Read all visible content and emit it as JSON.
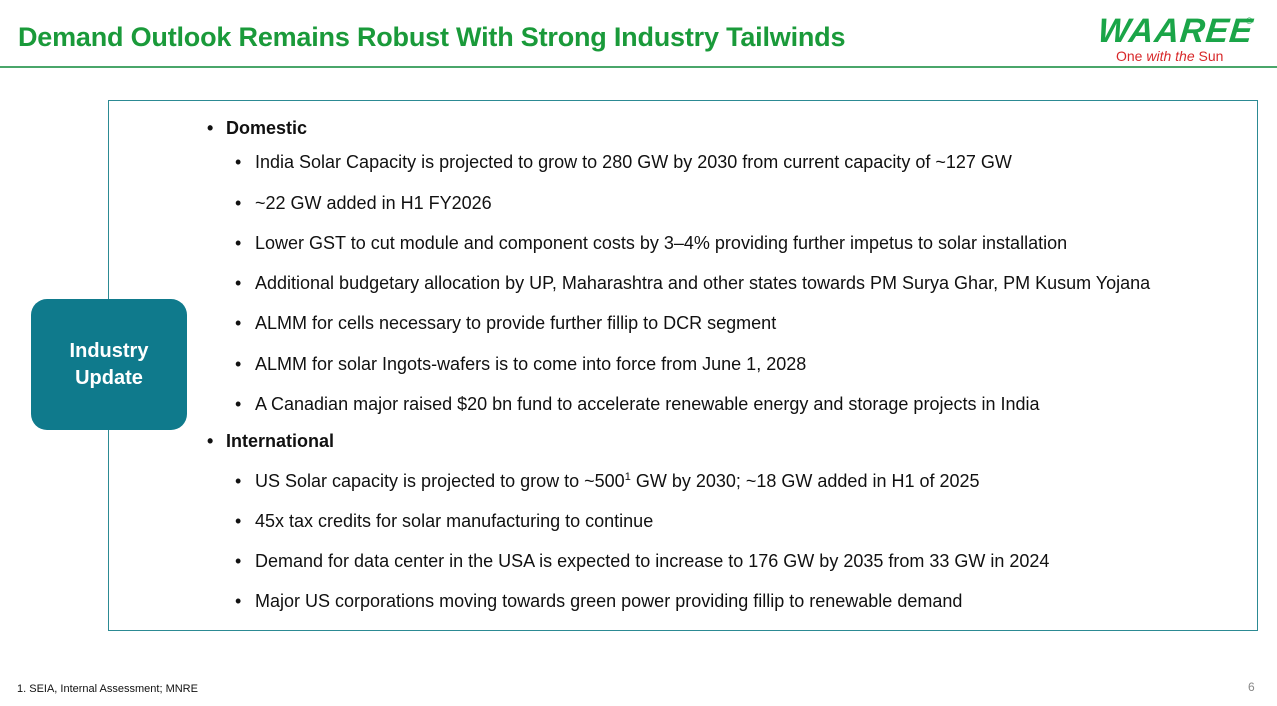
{
  "slide": {
    "title": "Demand Outlook Remains Robust With Strong Industry Tailwinds",
    "page_number": "6",
    "footnote": "1. SEIA, Internal Assessment; MNRE"
  },
  "logo": {
    "wordmark": "WAAREE",
    "registered": "®",
    "tagline_1": "One ",
    "tagline_2": "with the",
    "tagline_3": " Sun",
    "brand_color": "#1aa548",
    "tagline_color": "#d8282a"
  },
  "badge": {
    "label": "Industry Update",
    "color": "#0f7a8c"
  },
  "domestic": {
    "heading": "Domestic",
    "items": [
      "India Solar Capacity is projected to grow to 280 GW by 2030 from current capacity of ~127 GW",
      "~22 GW added in H1 FY2026",
      "Lower GST to cut module and component costs by 3–4% providing further impetus to solar installation",
      "Additional budgetary allocation by UP, Maharashtra and other states towards PM Surya Ghar, PM Kusum Yojana",
      "ALMM for cells necessary to provide further fillip to DCR segment",
      "ALMM for solar Ingots-wafers is to come into force from June 1, 2028",
      "A Canadian major raised $20 bn fund to accelerate renewable energy and storage projects in India"
    ]
  },
  "international": {
    "heading": "International",
    "item_0_pre": "US Solar capacity is projected to grow to ~500",
    "item_0_sup": "1",
    "item_0_post": " GW by 2030; ~18 GW added in H1 of 2025",
    "items": [
      "45x tax credits for solar manufacturing to continue",
      "Demand for data center in the USA is expected to increase to 176 GW by 2035 from 33 GW in 2024",
      "Major US corporations moving towards green power providing fillip to renewable demand"
    ]
  },
  "colors": {
    "title_green": "#1a9a3a",
    "box_border": "#2c8a93"
  }
}
